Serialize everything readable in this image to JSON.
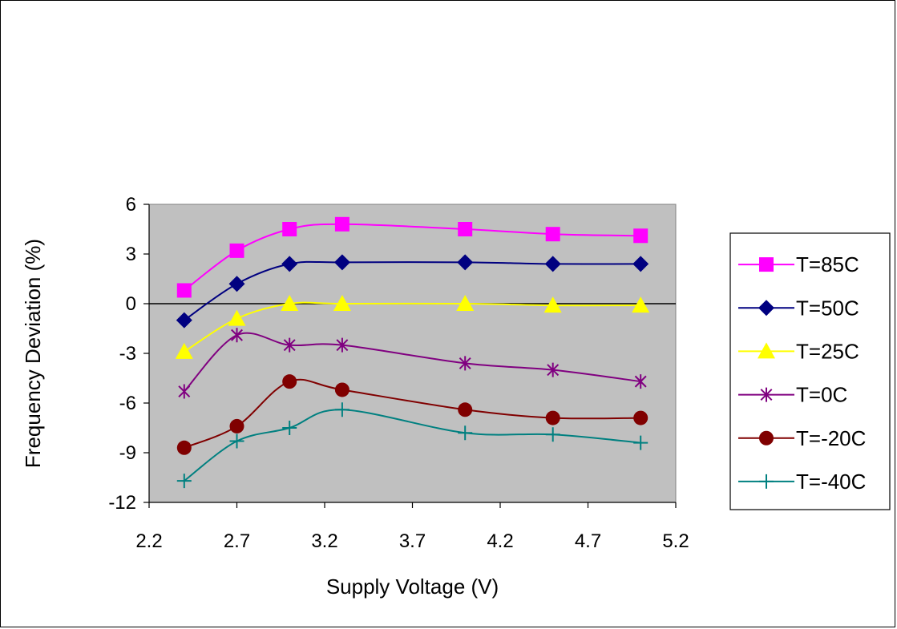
{
  "chart_data": {
    "type": "line",
    "title": "",
    "xlabel": "Supply Voltage (V)",
    "ylabel": "Frequency Deviation (%)",
    "xlim": [
      2.2,
      5.2
    ],
    "ylim": [
      -12,
      6
    ],
    "xticks": [
      2.2,
      2.7,
      3.2,
      3.7,
      4.2,
      4.7,
      5.2
    ],
    "yticks": [
      6,
      3,
      0,
      -3,
      -6,
      -9,
      -12
    ],
    "xtick_labels": [
      "2.2",
      "2.7",
      "3.2",
      "3.7",
      "4.2",
      "4.7",
      "5.2"
    ],
    "ytick_labels": [
      "6",
      "3",
      "0",
      "-3",
      "-6",
      "-9",
      "-12"
    ],
    "grid": false,
    "legend_position": "right",
    "plot_background": "#c0c0c0",
    "x": [
      2.4,
      2.7,
      3.0,
      3.3,
      4.0,
      4.5,
      5.0
    ],
    "series": [
      {
        "name": "T=85C",
        "color": "#ff00ff",
        "marker": "square",
        "values": [
          0.8,
          3.2,
          4.5,
          4.8,
          4.5,
          4.2,
          4.1
        ]
      },
      {
        "name": "T=50C",
        "color": "#000080",
        "marker": "diamond",
        "values": [
          -1.0,
          1.2,
          2.4,
          2.5,
          2.5,
          2.4,
          2.4
        ]
      },
      {
        "name": "T=25C",
        "color": "#ffff00",
        "marker": "triangle",
        "values": [
          -2.9,
          -0.9,
          0.0,
          0.0,
          0.0,
          -0.1,
          -0.1
        ]
      },
      {
        "name": "T=0C",
        "color": "#800080",
        "marker": "asterisk",
        "values": [
          -5.3,
          -1.9,
          -2.5,
          -2.5,
          -3.6,
          -4.0,
          -4.7
        ]
      },
      {
        "name": "T=-20C",
        "color": "#800000",
        "marker": "circle",
        "values": [
          -8.7,
          -7.4,
          -4.7,
          -5.2,
          -6.4,
          -6.9,
          -6.9
        ]
      },
      {
        "name": "T=-40C",
        "color": "#008080",
        "marker": "plus",
        "values": [
          -10.7,
          -8.3,
          -7.5,
          -6.4,
          -7.8,
          -7.9,
          -8.4
        ]
      }
    ]
  }
}
